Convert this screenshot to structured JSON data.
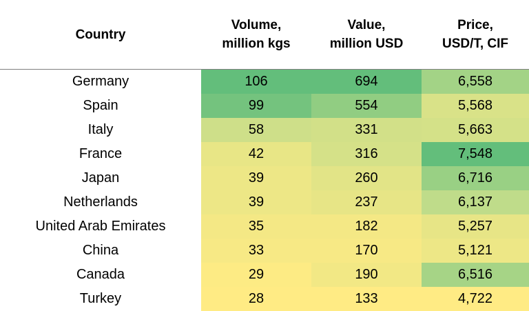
{
  "chart_data": {
    "type": "table",
    "columns": [
      "Country",
      "Volume,\nmillion kgs",
      "Value,\nmillion USD",
      "Price,\nUSD/T, CIF"
    ],
    "header": {
      "country": "Country",
      "volume_line1": "Volume,",
      "volume_line2": "million kgs",
      "value_line1": "Value,",
      "value_line2": "million USD",
      "price_line1": "Price,",
      "price_line2": "USD/T, CIF"
    },
    "rows": [
      {
        "country": "Germany",
        "volume": "106",
        "value": "694",
        "price": "6,558"
      },
      {
        "country": "Spain",
        "volume": "99",
        "value": "554",
        "price": "5,568"
      },
      {
        "country": "Italy",
        "volume": "58",
        "value": "331",
        "price": "5,663"
      },
      {
        "country": "France",
        "volume": "42",
        "value": "316",
        "price": "7,548"
      },
      {
        "country": "Japan",
        "volume": "39",
        "value": "260",
        "price": "6,716"
      },
      {
        "country": "Netherlands",
        "volume": "39",
        "value": "237",
        "price": "6,137"
      },
      {
        "country": "United Arab Emirates",
        "volume": "35",
        "value": "182",
        "price": "5,257"
      },
      {
        "country": "China",
        "volume": "33",
        "value": "170",
        "price": "5,121"
      },
      {
        "country": "Canada",
        "volume": "29",
        "value": "190",
        "price": "6,516"
      },
      {
        "country": "Turkey",
        "volume": "28",
        "value": "133",
        "price": "4,722"
      }
    ],
    "color_scale": {
      "low": "#ffeb84",
      "mid": "#bfdc8a",
      "high": "#63be7b"
    }
  }
}
